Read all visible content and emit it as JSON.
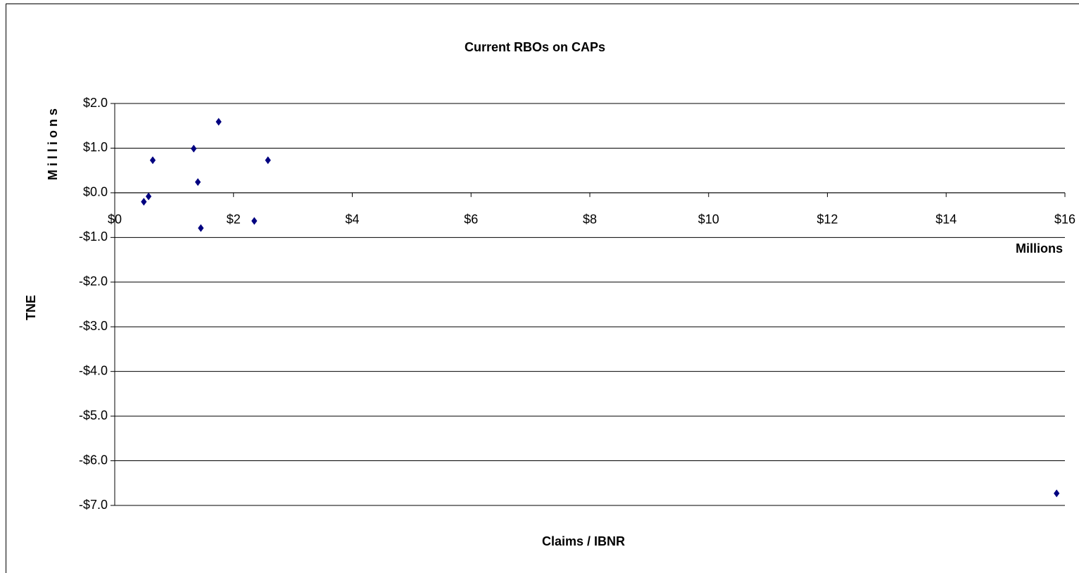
{
  "chart_data": {
    "type": "scatter",
    "title": "Current RBOs on CAPs",
    "x_label": "Claims / IBNR",
    "x_unit_label": "Millions",
    "y_label": "TNE",
    "y_unit_label": "M i l l i o n s",
    "series": [
      {
        "name": "RBOs",
        "color": "#000080",
        "x": [
          0.49,
          0.57,
          0.64,
          1.33,
          1.4,
          1.45,
          1.75,
          2.35,
          2.58,
          15.86
        ],
        "values": [
          -0.2,
          -0.08,
          0.73,
          0.99,
          0.24,
          -0.79,
          1.59,
          -0.63,
          0.73,
          -6.73
        ]
      }
    ],
    "xlim": [
      0,
      16
    ],
    "xticks": [
      {
        "value": 0,
        "label": "$0"
      },
      {
        "value": 2,
        "label": "$2"
      },
      {
        "value": 4,
        "label": "$4"
      },
      {
        "value": 6,
        "label": "$6"
      },
      {
        "value": 8,
        "label": "$8"
      },
      {
        "value": 10,
        "label": "$10"
      },
      {
        "value": 12,
        "label": "$12"
      },
      {
        "value": 14,
        "label": "$14"
      },
      {
        "value": 16,
        "label": "$16"
      }
    ],
    "ylim": [
      -7,
      2
    ],
    "yticks": [
      {
        "value": 2,
        "label": "$2.0"
      },
      {
        "value": 1,
        "label": "$1.0"
      },
      {
        "value": 0,
        "label": "$0.0"
      },
      {
        "value": -1,
        "label": "-$1.0"
      },
      {
        "value": -2,
        "label": "-$2.0"
      },
      {
        "value": -3,
        "label": "-$3.0"
      },
      {
        "value": -4,
        "label": "-$4.0"
      },
      {
        "value": -5,
        "label": "-$5.0"
      },
      {
        "value": -6,
        "label": "-$6.0"
      },
      {
        "value": -7,
        "label": "-$7.0"
      }
    ],
    "grid": true
  }
}
